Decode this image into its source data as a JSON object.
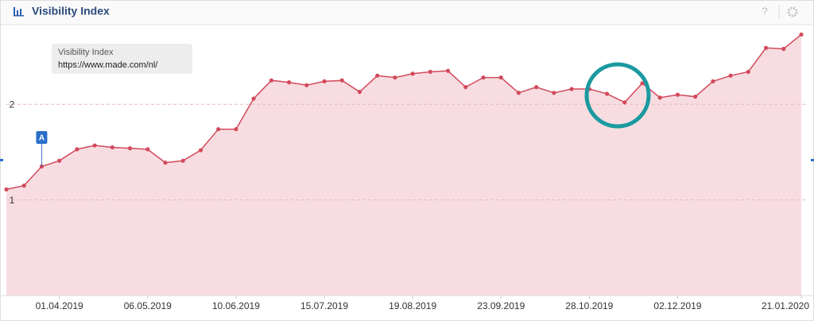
{
  "header": {
    "title": "Visibility Index",
    "help": "?"
  },
  "chart_data": {
    "type": "area",
    "tooltip": {
      "title": "Visibility Index",
      "url": "https://www.made.com/nl/"
    },
    "annotation": "A",
    "categories": [
      null,
      null,
      null,
      "01.04.2019",
      null,
      null,
      null,
      null,
      "06.05.2019",
      null,
      null,
      null,
      null,
      "10.06.2019",
      null,
      null,
      null,
      null,
      "15.07.2019",
      null,
      null,
      null,
      null,
      "19.08.2019",
      null,
      null,
      null,
      null,
      "23.09.2019",
      null,
      null,
      null,
      null,
      "28.10.2019",
      null,
      null,
      null,
      null,
      "02.12.2019",
      null,
      null,
      null,
      null,
      null,
      null,
      "21.01.2020"
    ],
    "values": [
      1.11,
      1.15,
      1.35,
      1.41,
      1.53,
      1.57,
      1.55,
      1.54,
      1.53,
      1.39,
      1.41,
      1.52,
      1.74,
      1.74,
      2.06,
      2.25,
      2.23,
      2.2,
      2.24,
      2.25,
      2.13,
      2.3,
      2.28,
      2.32,
      2.34,
      2.35,
      2.18,
      2.28,
      2.28,
      2.12,
      2.18,
      2.12,
      2.16,
      2.16,
      2.11,
      2.02,
      2.22,
      2.07,
      2.1,
      2.08,
      2.24,
      2.3,
      2.34,
      2.59,
      2.58,
      2.73
    ],
    "color": "#d24a5c",
    "fill": "#f7dde1",
    "ylim": [
      0,
      2.8
    ],
    "yticks": [
      1,
      2
    ],
    "grid": true
  }
}
